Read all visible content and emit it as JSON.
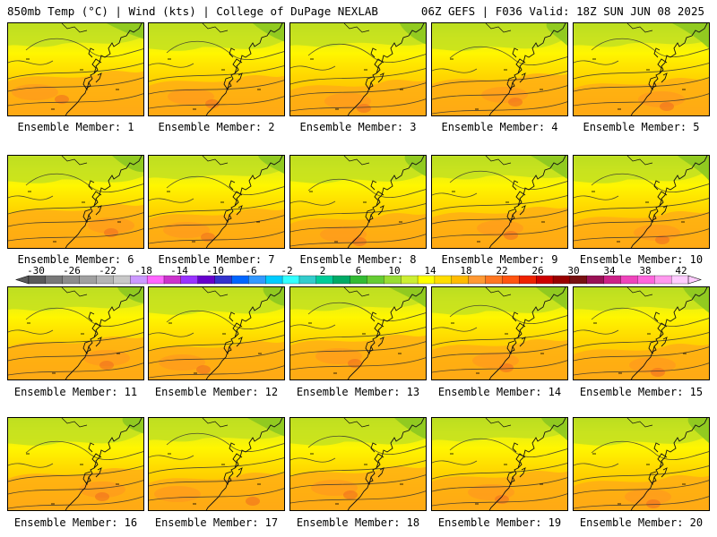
{
  "header": {
    "left": "850mb Temp (°C) | Wind (kts) | College of DuPage NEXLAB",
    "right": "06Z GEFS | F036 Valid: 18Z SUN JUN 08 2025"
  },
  "panels": [
    {
      "label": "Ensemble Member: 1"
    },
    {
      "label": "Ensemble Member: 2"
    },
    {
      "label": "Ensemble Member: 3"
    },
    {
      "label": "Ensemble Member: 4"
    },
    {
      "label": "Ensemble Member: 5"
    },
    {
      "label": "Ensemble Member: 6"
    },
    {
      "label": "Ensemble Member: 7"
    },
    {
      "label": "Ensemble Member: 8"
    },
    {
      "label": "Ensemble Member: 9"
    },
    {
      "label": "Ensemble Member: 10"
    },
    {
      "label": "Ensemble Member: 11"
    },
    {
      "label": "Ensemble Member: 12"
    },
    {
      "label": "Ensemble Member: 13"
    },
    {
      "label": "Ensemble Member: 14"
    },
    {
      "label": "Ensemble Member: 15"
    },
    {
      "label": "Ensemble Member: 16"
    },
    {
      "label": "Ensemble Member: 17"
    },
    {
      "label": "Ensemble Member: 18"
    },
    {
      "label": "Ensemble Member: 19"
    },
    {
      "label": "Ensemble Member: 20"
    }
  ],
  "colorbar": {
    "ticks": [
      "-30",
      "-26",
      "-22",
      "-18",
      "-14",
      "-10",
      "-6",
      "-2",
      "2",
      "6",
      "10",
      "14",
      "18",
      "22",
      "26",
      "30",
      "34",
      "38",
      "42"
    ],
    "colors": [
      "#5a5a5a",
      "#787878",
      "#8c8c8c",
      "#a0a0a0",
      "#b4b4b4",
      "#c8c8c8",
      "#cc99ff",
      "#ff66ff",
      "#cc33cc",
      "#9933ff",
      "#6600cc",
      "#3333cc",
      "#0066ff",
      "#3399ff",
      "#00ccff",
      "#33ffff",
      "#33cccc",
      "#00cc99",
      "#00aa66",
      "#33bb33",
      "#66cc33",
      "#99dd33",
      "#ccee33",
      "#ffff00",
      "#ffdd00",
      "#ffbb00",
      "#ff9933",
      "#ff7722",
      "#ff5511",
      "#ee2200",
      "#cc0000",
      "#990000",
      "#771111",
      "#991155",
      "#cc2288",
      "#ee44bb",
      "#ff66dd",
      "#ff99ee",
      "#ffccff"
    ]
  }
}
